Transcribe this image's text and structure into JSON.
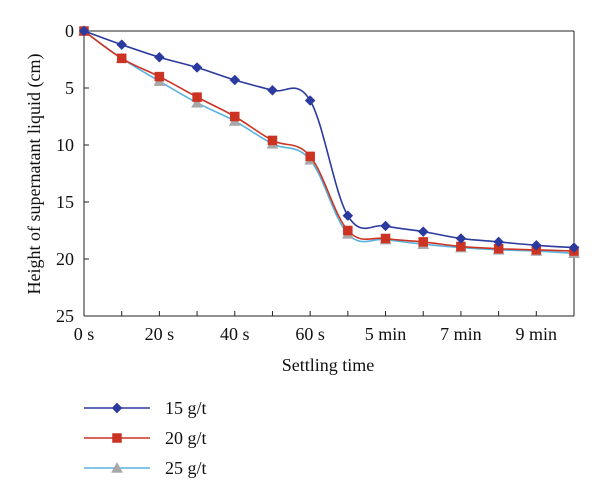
{
  "chart_data": {
    "type": "line",
    "xlabel": "Settling time",
    "ylabel": "Height of supernatant liquid (cm)",
    "x": [
      "0 s",
      "10 s",
      "20 s",
      "30 s",
      "40 s",
      "50 s",
      "60 s",
      "4 min",
      "5 min",
      "6 min",
      "7 min",
      "8 min",
      "9 min",
      "10 min"
    ],
    "x_tick_labels": [
      "0 s",
      "20 s",
      "40 s",
      "60 s",
      "5 min",
      "7 min",
      "9 min"
    ],
    "ylim": [
      0,
      25
    ],
    "y_inverted": true,
    "y_ticks": [
      0,
      5,
      10,
      15,
      20,
      25
    ],
    "grid": false,
    "legend_position": "bottom-left",
    "series": [
      {
        "name": "15 g/t",
        "color": "#2b3a9e",
        "marker": "diamond",
        "values": [
          0,
          1.2,
          2.3,
          3.2,
          4.3,
          5.2,
          6.1,
          16.2,
          17.1,
          17.6,
          18.2,
          18.5,
          18.8,
          19.0
        ]
      },
      {
        "name": "20 g/t",
        "color": "#cc3322",
        "marker": "square",
        "values": [
          0,
          2.4,
          4.0,
          5.8,
          7.5,
          9.6,
          11.0,
          17.5,
          18.2,
          18.5,
          18.9,
          19.1,
          19.2,
          19.3
        ]
      },
      {
        "name": "25 g/t",
        "color": "#5ab2e0",
        "marker": "triangle",
        "values": [
          0,
          2.4,
          4.4,
          6.3,
          7.9,
          9.9,
          11.3,
          17.8,
          18.3,
          18.7,
          19.0,
          19.2,
          19.3,
          19.5
        ]
      }
    ]
  }
}
